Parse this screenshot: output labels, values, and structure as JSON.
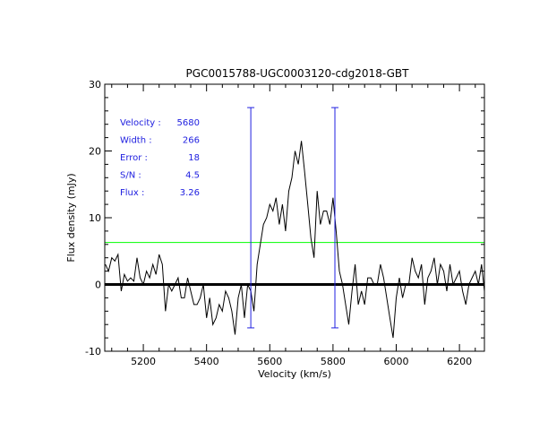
{
  "chart_data": {
    "type": "line",
    "title": "PGC0015788-UGC0003120-cdg2018-GBT",
    "xlabel": "Velocity (km/s)",
    "ylabel": "Flux density (mJy)",
    "xlim": [
      5078,
      6279
    ],
    "ylim": [
      -10,
      30
    ],
    "xticks": [
      "5200",
      "5400",
      "5600",
      "5800",
      "6000",
      "6200"
    ],
    "yticks": [
      "-10",
      "0",
      "10",
      "20",
      "30"
    ],
    "x_start": 5080,
    "x_step": 10,
    "series": [
      {
        "name": "spectrum",
        "values": [
          3,
          2,
          4,
          3.5,
          4.5,
          -1,
          1.5,
          0.5,
          1,
          0.5,
          4,
          1,
          0,
          2,
          1,
          3,
          1.5,
          4.5,
          3,
          -4,
          0,
          -1,
          0,
          1,
          -2,
          -2,
          1,
          -1,
          -3,
          -3,
          -2,
          0,
          -5,
          -2,
          -6,
          -5,
          -3,
          -4,
          -1,
          -2,
          -4,
          -7.5,
          -2,
          0,
          -5,
          0,
          -1,
          -4,
          3,
          6,
          9,
          10,
          12,
          11,
          13,
          9,
          12,
          8,
          14,
          16,
          20,
          18,
          21.5,
          17,
          12,
          7,
          4,
          14,
          9,
          11,
          11,
          9,
          13,
          8,
          2,
          0,
          -3,
          -6,
          -1,
          3,
          -3,
          -1,
          -3,
          1,
          1,
          0,
          0,
          3,
          1,
          -2,
          -5,
          -8,
          -2,
          1,
          -2,
          0,
          0,
          4,
          2,
          1,
          3,
          -3,
          1,
          2,
          4,
          0,
          3,
          2,
          -1,
          3,
          0,
          1,
          2,
          -1,
          -3,
          0,
          1,
          2,
          0,
          3,
          -1
        ]
      }
    ],
    "zero_line": 0,
    "threshold_line": 6.3,
    "markers": [
      {
        "velocity": 5540,
        "top": 26.5,
        "bottom": -6.5
      },
      {
        "velocity": 5806,
        "top": 26.5,
        "bottom": -6.5
      }
    ],
    "annotations": [
      {
        "label": "Velocity :",
        "value": "5680"
      },
      {
        "label": "Width :",
        "value": "266"
      },
      {
        "label": "Error :",
        "value": "18"
      },
      {
        "label": "S/N :",
        "value": "4.5"
      },
      {
        "label": "Flux :",
        "value": "3.26"
      }
    ],
    "colors": {
      "spectrum": "#000000",
      "threshold": "#00ff00",
      "markers": "#2020e0",
      "annotations": "#2020e0"
    },
    "grid": false
  }
}
